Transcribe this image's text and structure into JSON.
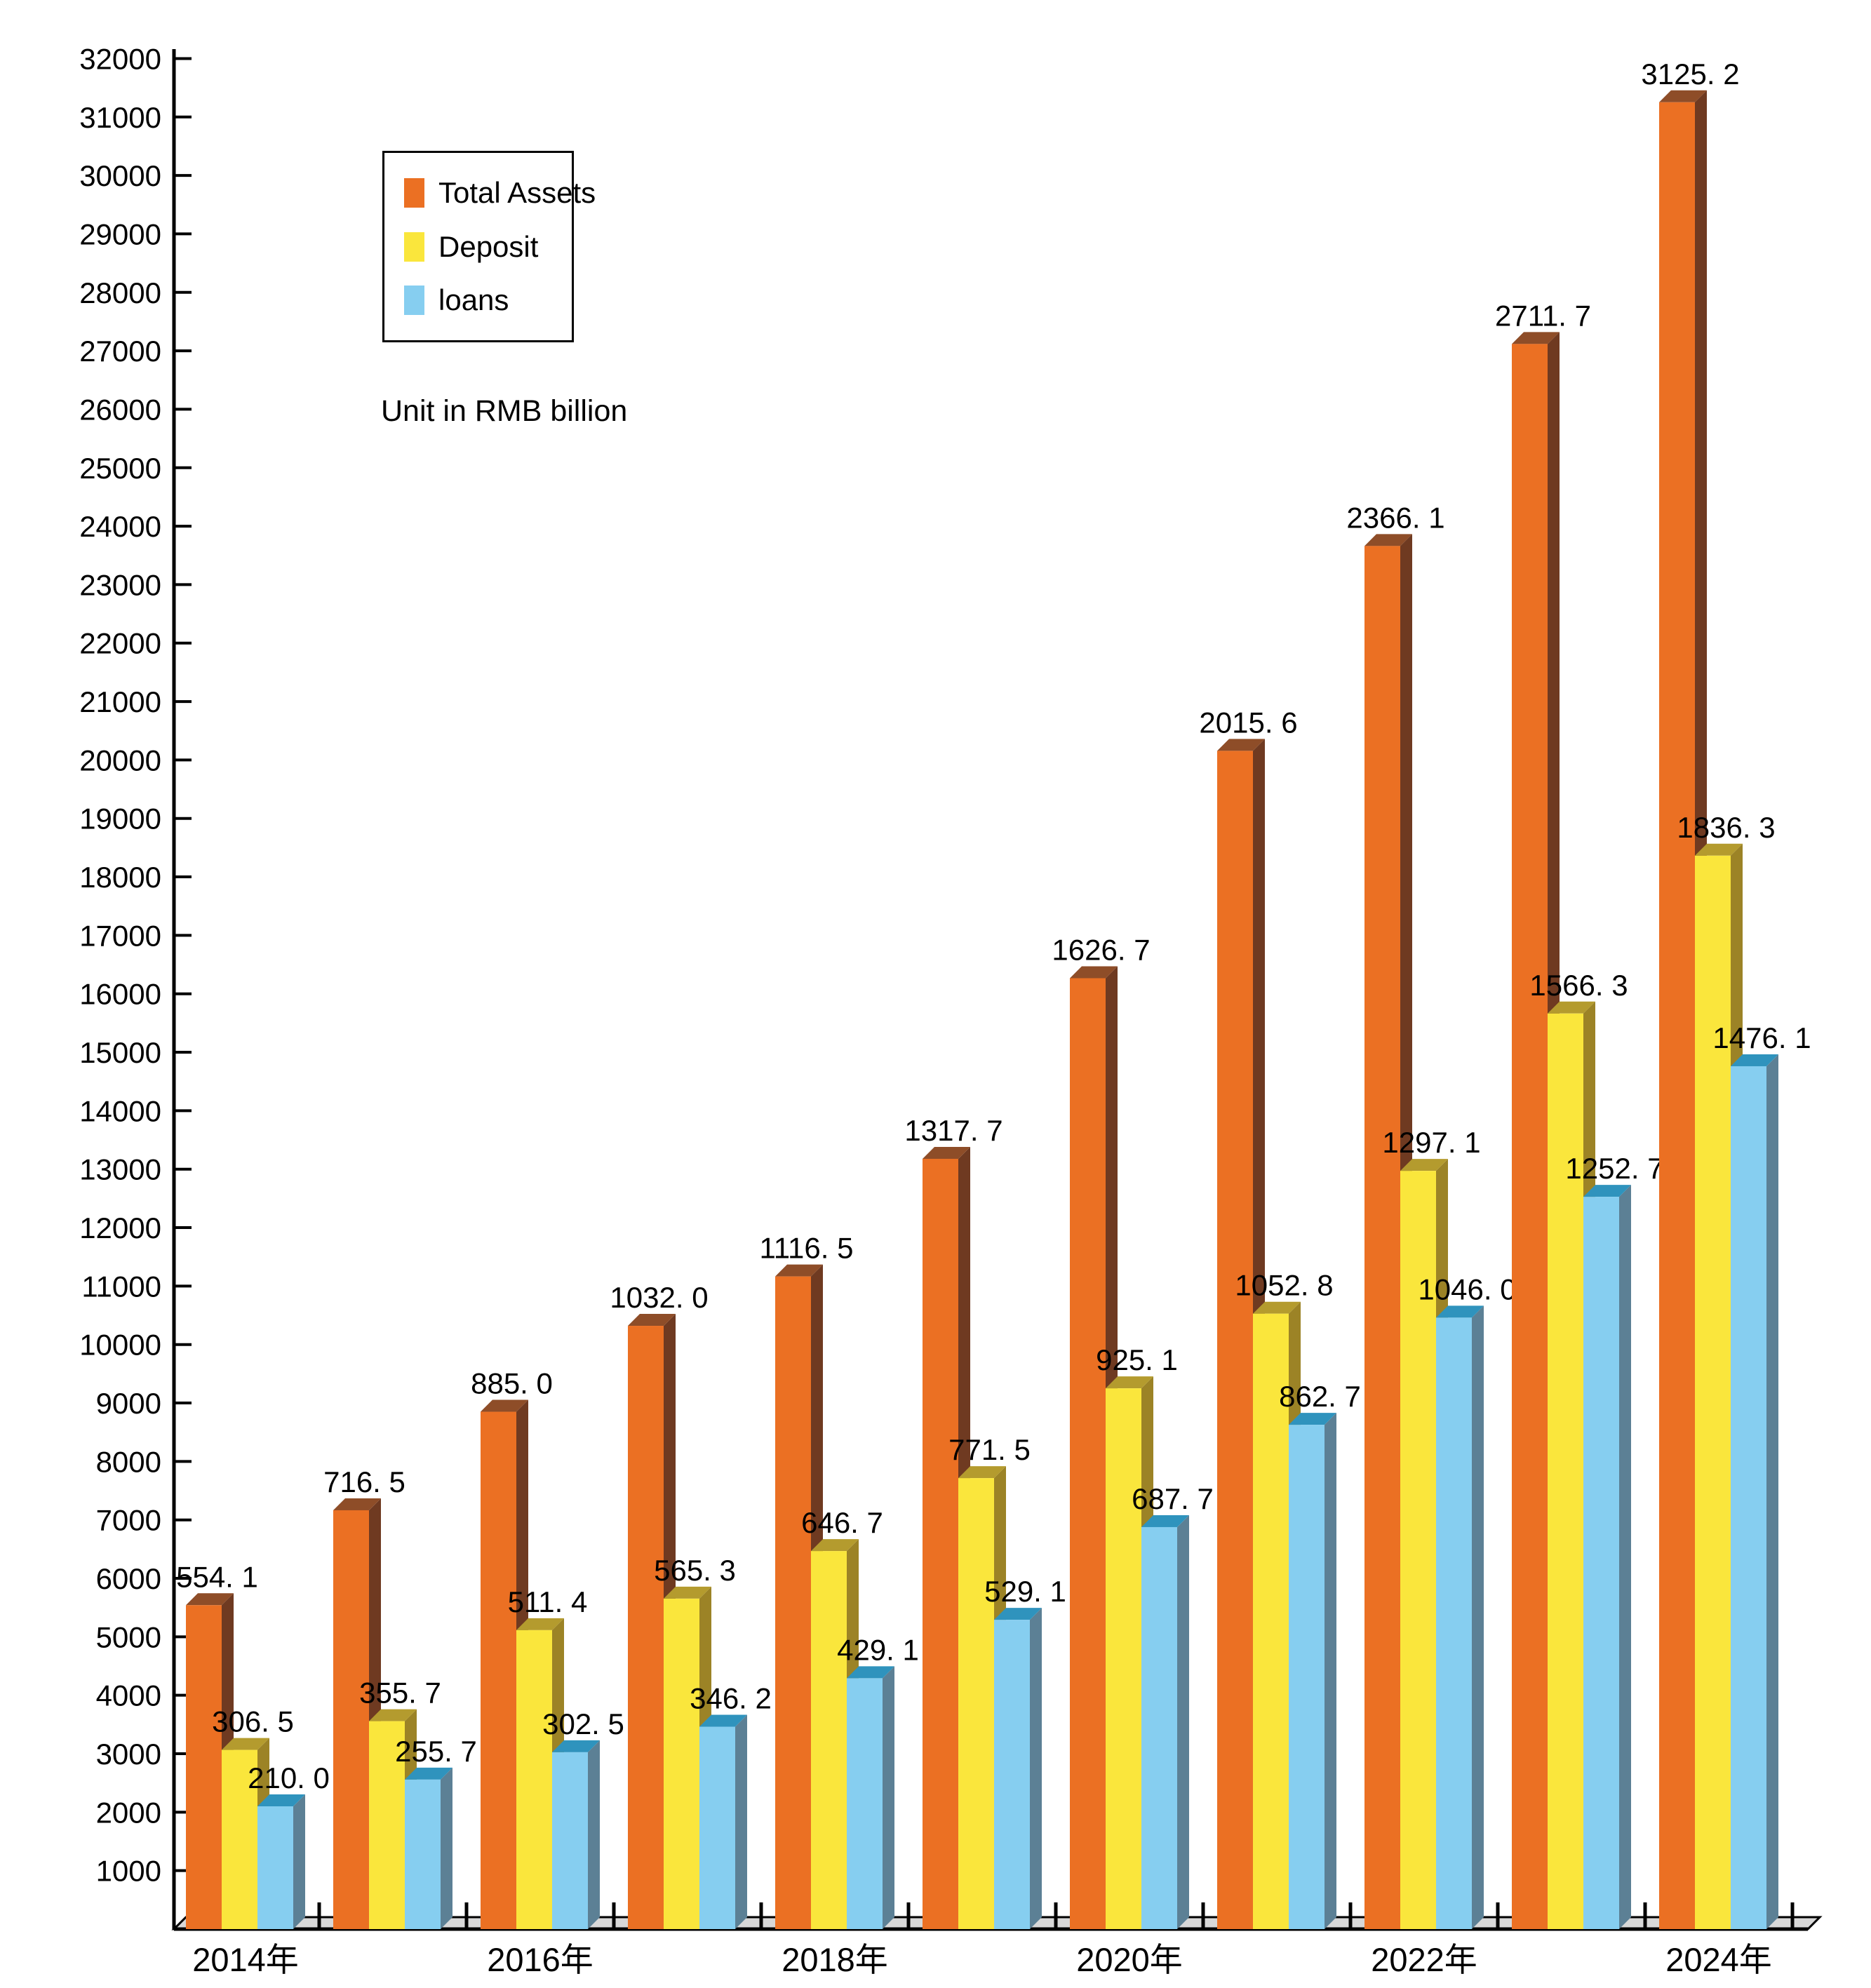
{
  "note": "Unit in RMB billion",
  "legend": {
    "items": [
      {
        "label": "Total Assets"
      },
      {
        "label": "Deposit"
      },
      {
        "label": "loans"
      }
    ]
  },
  "chart_data": {
    "type": "bar",
    "style": "3d-columns",
    "title": "",
    "subtitle_note": "Unit in RMB billion",
    "n_groups": 11,
    "x_axis": {
      "visible_labels": [
        "2014年",
        "2016年",
        "2018年",
        "2020年",
        "2022年",
        "2024年"
      ],
      "visible_label_group_indices": [
        0,
        2,
        4,
        6,
        8,
        10
      ]
    },
    "y_axis": {
      "min": 1000,
      "max": 32000,
      "step": 1000
    },
    "bar_value_scale_vs_axis": 10,
    "floor_color": "#D8D8D8",
    "axis_color": "#000000",
    "legend_position": "upper-left-inside",
    "grid": false,
    "series": [
      {
        "name": "Total Assets",
        "colors": {
          "front": "#EB7023",
          "side": "#6F3A21",
          "top": "#8E4D28"
        },
        "values": [
          554.1,
          716.5,
          885.0,
          1032.0,
          1116.5,
          1317.7,
          1626.7,
          2015.6,
          2366.1,
          2711.7,
          3125.2
        ],
        "labels": [
          "554. 1",
          "716. 5",
          "885. 0",
          "1032. 0",
          "1116. 5",
          "1317. 7",
          "1626. 7",
          "2015. 6",
          "2366. 1",
          "2711. 7",
          "3125. 2"
        ]
      },
      {
        "name": "Deposit",
        "colors": {
          "front": "#FAE63C",
          "side": "#9C8326",
          "top": "#B49B2E"
        },
        "values": [
          306.5,
          355.7,
          511.4,
          565.3,
          646.7,
          771.5,
          925.1,
          1052.8,
          1297.1,
          1566.3,
          1836.3
        ],
        "labels": [
          "306. 5",
          "355. 7",
          "511. 4",
          "565. 3",
          "646. 7",
          "771. 5",
          "925. 1",
          "1052. 8",
          "1297. 1",
          "1566. 3",
          "1836. 3"
        ]
      },
      {
        "name": "loans",
        "colors": {
          "front": "#86CEF0",
          "side": "#5C8095",
          "top": "#2F93BD"
        },
        "values": [
          210.0,
          255.7,
          302.5,
          346.2,
          429.1,
          529.1,
          687.7,
          862.7,
          1046.0,
          1252.7,
          1476.1
        ],
        "labels": [
          "210. 0",
          "255. 7",
          "302. 5",
          "346. 2",
          "429. 1",
          "529. 1",
          "687. 7",
          "862. 7",
          "1046. 0",
          "1252. 7",
          "1476. 1"
        ]
      }
    ]
  }
}
